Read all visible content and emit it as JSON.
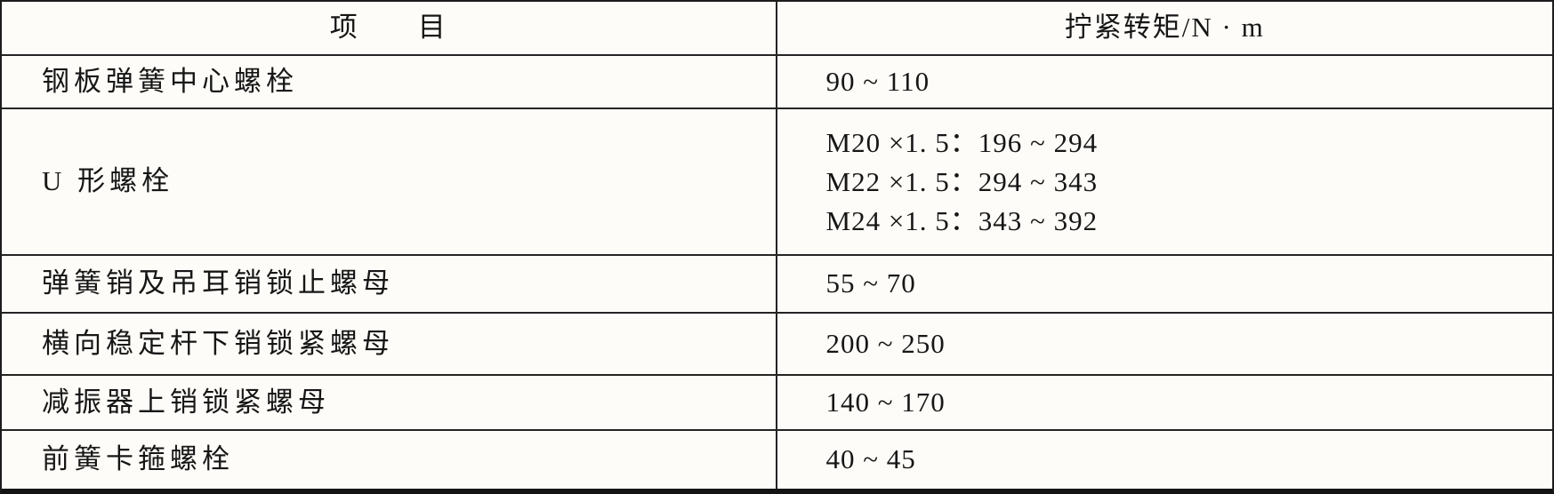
{
  "table": {
    "title_semantic": "tightening-torque-spec-table",
    "colors": {
      "ink": "#1d1d1d",
      "paper": "#fdfcf8"
    },
    "header": {
      "item_label": "项　　目",
      "torque_label": "拧紧转矩/N · m"
    },
    "rows": [
      {
        "item": "钢板弹簧中心螺栓",
        "torque": [
          "90 ~ 110"
        ]
      },
      {
        "item": "U 形螺栓",
        "torque": [
          "M20 ×1. 5：196 ~ 294",
          "M22 ×1. 5：294 ~ 343",
          "M24 ×1. 5：343 ~ 392"
        ]
      },
      {
        "item": "弹簧销及吊耳销锁止螺母",
        "torque": [
          "55 ~ 70"
        ]
      },
      {
        "item": "横向稳定杆下销锁紧螺母",
        "torque": [
          "200 ~ 250"
        ]
      },
      {
        "item": "减振器上销锁紧螺母",
        "torque": [
          "140 ~ 170"
        ]
      },
      {
        "item": "前簧卡箍螺栓",
        "torque": [
          "40 ~ 45"
        ]
      }
    ]
  }
}
